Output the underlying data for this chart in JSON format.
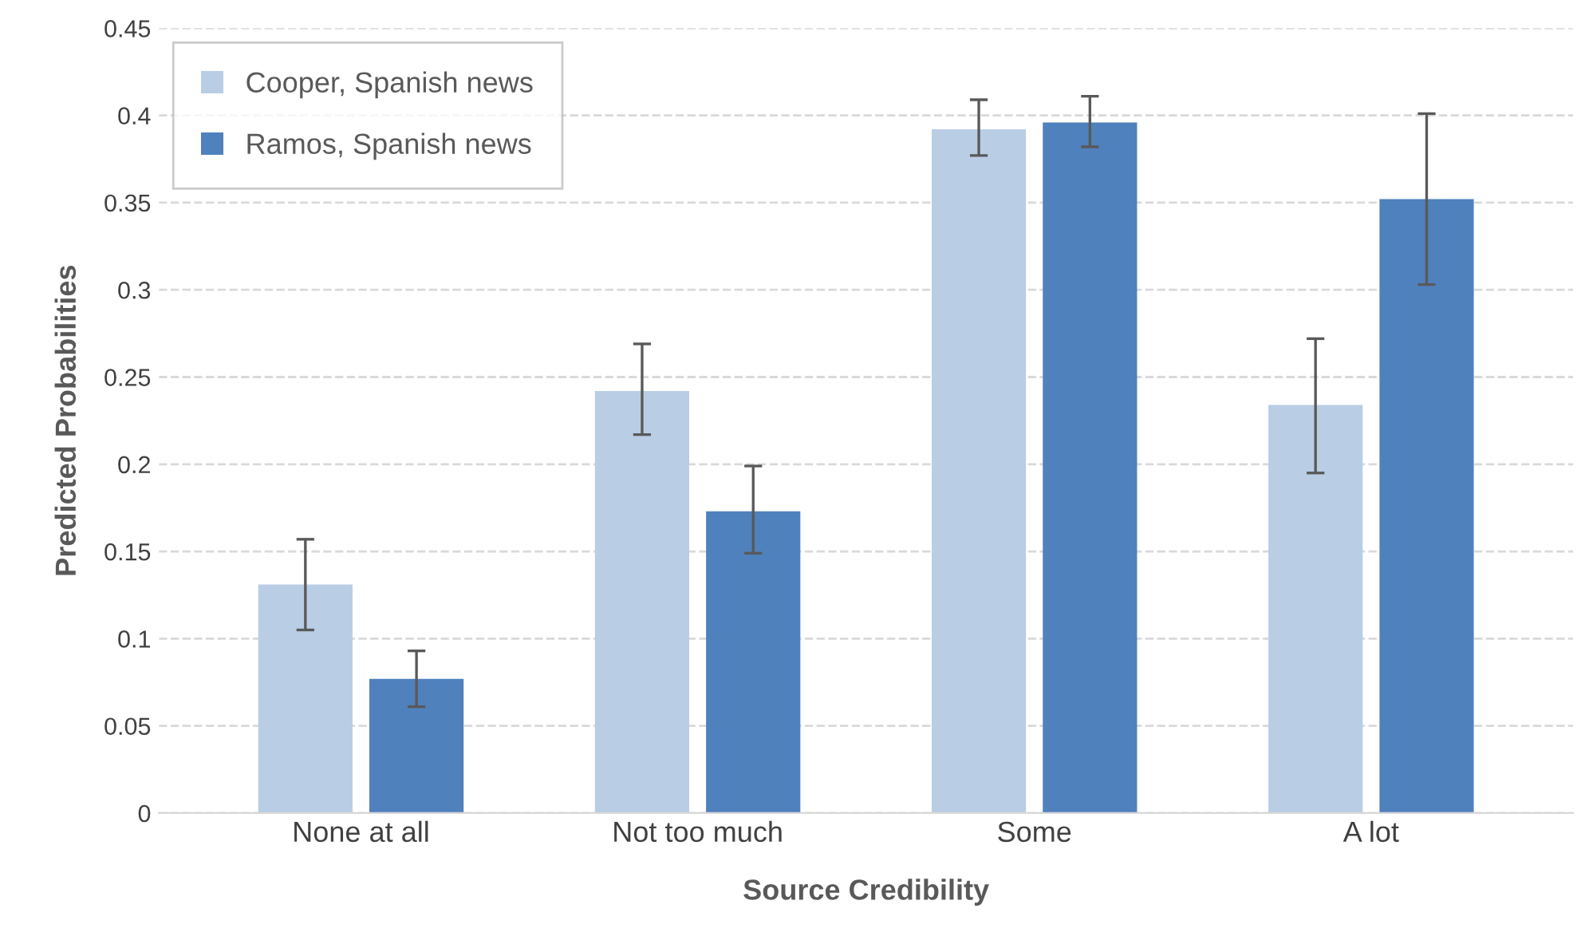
{
  "chart_data": {
    "type": "bar",
    "xlabel": "Source Credibility",
    "ylabel": "Predicted Probabilities",
    "categories": [
      "None at all",
      "Not too much",
      "Some",
      "A lot"
    ],
    "series": [
      {
        "name": "Cooper, Spanish news",
        "color": "#b9cde5",
        "values": [
          0.131,
          0.242,
          0.392,
          0.234
        ],
        "errors": [
          [
            0.105,
            0.157
          ],
          [
            0.217,
            0.269
          ],
          [
            0.377,
            0.409
          ],
          [
            0.195,
            0.272
          ]
        ]
      },
      {
        "name": "Ramos, Spanish news",
        "color": "#4f81bd",
        "values": [
          0.077,
          0.173,
          0.396,
          0.352
        ],
        "errors": [
          [
            0.061,
            0.093
          ],
          [
            0.149,
            0.199
          ],
          [
            0.382,
            0.411
          ],
          [
            0.303,
            0.401
          ]
        ]
      }
    ],
    "ylim": [
      0,
      0.45
    ],
    "yticks": [
      0,
      0.05,
      0.1,
      0.15,
      0.2,
      0.25,
      0.3,
      0.35,
      0.4,
      0.45
    ],
    "grid": "y",
    "legend": "top left"
  }
}
